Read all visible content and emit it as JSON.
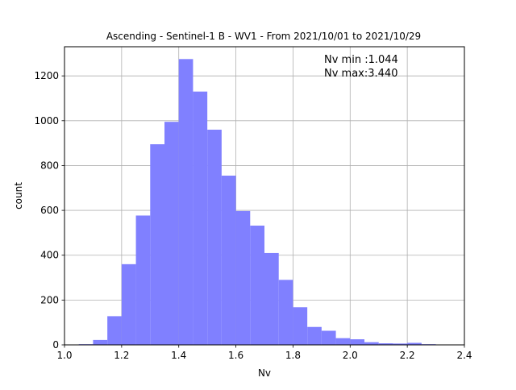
{
  "chart_data": {
    "type": "bar",
    "title": "Ascending - Sentinel-1 B - WV1 - From 2021/10/01 to 2021/10/29",
    "xlabel": "Nv",
    "ylabel": "count",
    "xlim": [
      1.0,
      2.4
    ],
    "ylim": [
      0,
      1330
    ],
    "xticks": [
      "1.0",
      "1.2",
      "1.4",
      "1.6",
      "1.8",
      "2.0",
      "2.2",
      "2.4"
    ],
    "yticks": [
      "0",
      "200",
      "400",
      "600",
      "800",
      "1000",
      "1200"
    ],
    "grid": true,
    "bar_color": "#8080ff",
    "annotations": [
      "Nv min :1.044",
      "Nv max:3.440"
    ],
    "bins": [
      {
        "x0": 1.05,
        "x1": 1.1,
        "count": 3
      },
      {
        "x0": 1.1,
        "x1": 1.15,
        "count": 22
      },
      {
        "x0": 1.15,
        "x1": 1.2,
        "count": 128
      },
      {
        "x0": 1.2,
        "x1": 1.25,
        "count": 360
      },
      {
        "x0": 1.25,
        "x1": 1.3,
        "count": 577
      },
      {
        "x0": 1.3,
        "x1": 1.35,
        "count": 895
      },
      {
        "x0": 1.35,
        "x1": 1.4,
        "count": 995
      },
      {
        "x0": 1.4,
        "x1": 1.45,
        "count": 1275
      },
      {
        "x0": 1.45,
        "x1": 1.5,
        "count": 1130
      },
      {
        "x0": 1.5,
        "x1": 1.55,
        "count": 960
      },
      {
        "x0": 1.55,
        "x1": 1.6,
        "count": 755
      },
      {
        "x0": 1.6,
        "x1": 1.65,
        "count": 597
      },
      {
        "x0": 1.65,
        "x1": 1.7,
        "count": 532
      },
      {
        "x0": 1.7,
        "x1": 1.75,
        "count": 410
      },
      {
        "x0": 1.75,
        "x1": 1.8,
        "count": 290
      },
      {
        "x0": 1.8,
        "x1": 1.85,
        "count": 168
      },
      {
        "x0": 1.85,
        "x1": 1.9,
        "count": 80
      },
      {
        "x0": 1.9,
        "x1": 1.95,
        "count": 63
      },
      {
        "x0": 1.95,
        "x1": 2.0,
        "count": 30
      },
      {
        "x0": 2.0,
        "x1": 2.05,
        "count": 25
      },
      {
        "x0": 2.05,
        "x1": 2.1,
        "count": 12
      },
      {
        "x0": 2.1,
        "x1": 2.15,
        "count": 7
      },
      {
        "x0": 2.15,
        "x1": 2.2,
        "count": 6
      },
      {
        "x0": 2.2,
        "x1": 2.25,
        "count": 9
      },
      {
        "x0": 2.25,
        "x1": 2.3,
        "count": 3
      }
    ]
  }
}
